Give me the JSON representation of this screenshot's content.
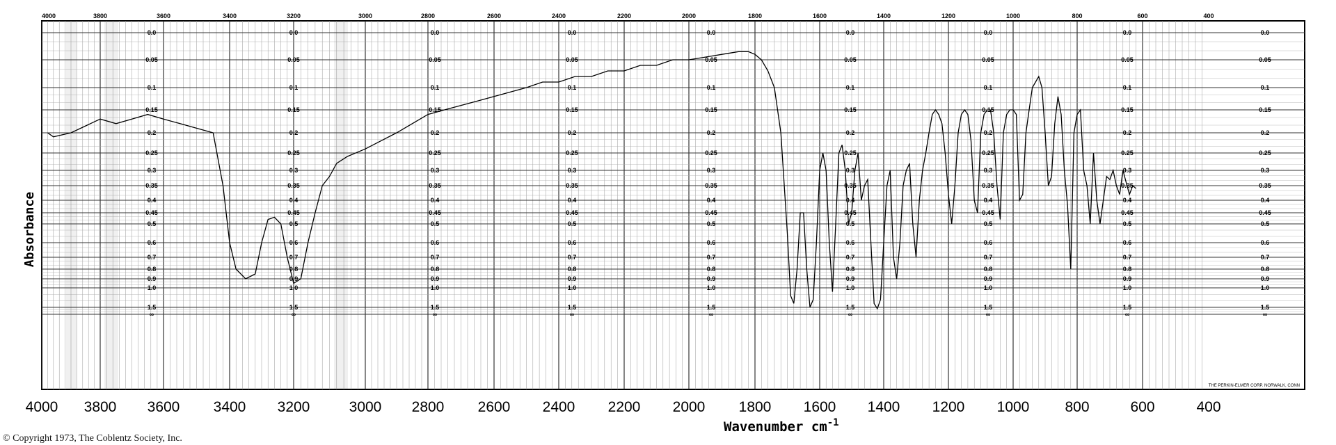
{
  "chart_data": {
    "type": "line",
    "ylabel": "Absorbance",
    "xlabel": "Wavenumber cm",
    "xlabel_superscript": "-1",
    "xlim": [
      4000,
      400
    ],
    "x_reversed": true,
    "y_scale": "absorbance",
    "ylim": [
      0.0,
      2.0
    ],
    "grid": true,
    "x_ticks_bottom": [
      "4000",
      "3800",
      "3600",
      "3400",
      "3200",
      "3000",
      "2800",
      "2600",
      "2400",
      "2200",
      "2000",
      "1800",
      "1600",
      "1400",
      "1200",
      "1000",
      "800",
      "600",
      "400"
    ],
    "x_ticks_top": [
      "4000",
      "3800",
      "3600",
      "3400",
      "3200",
      "3000",
      "2800",
      "2600",
      "2400",
      "2200",
      "2000",
      "1800",
      "1600",
      "1400",
      "1200",
      "1000",
      "800",
      "600",
      "400"
    ],
    "absorbance_ticks": [
      "0.0",
      "0.05",
      "0.1",
      "0.15",
      "0.2",
      "0.25",
      "0.3",
      "0.35",
      "0.4",
      "0.45",
      "0.5",
      "0.6",
      "0.7",
      "0.8",
      "0.9",
      "1.0",
      "1.5",
      "∞"
    ],
    "series": [
      {
        "x": [
          3980,
          3960,
          3900,
          3800,
          3750,
          3700,
          3650,
          3600,
          3550,
          3500,
          3450,
          3420,
          3400,
          3380,
          3350,
          3320,
          3300,
          3280,
          3260,
          3240,
          3220,
          3200,
          3180,
          3160,
          3140,
          3120,
          3100,
          3080,
          3050,
          3000,
          2950,
          2900,
          2850,
          2800,
          2750,
          2700,
          2650,
          2600,
          2550,
          2500,
          2450,
          2400,
          2350,
          2300,
          2250,
          2200,
          2150,
          2100,
          2050,
          2000,
          1950,
          1900,
          1850,
          1820,
          1800,
          1780,
          1760,
          1740,
          1720,
          1700,
          1690,
          1680,
          1670,
          1660,
          1650,
          1640,
          1630,
          1620,
          1610,
          1600,
          1590,
          1580,
          1570,
          1560,
          1550,
          1540,
          1530,
          1520,
          1510,
          1500,
          1490,
          1480,
          1470,
          1460,
          1450,
          1440,
          1430,
          1420,
          1410,
          1400,
          1390,
          1380,
          1370,
          1360,
          1350,
          1340,
          1330,
          1320,
          1310,
          1300,
          1290,
          1280,
          1270,
          1260,
          1250,
          1240,
          1230,
          1220,
          1210,
          1200,
          1190,
          1180,
          1170,
          1160,
          1150,
          1140,
          1130,
          1120,
          1110,
          1100,
          1090,
          1080,
          1070,
          1060,
          1050,
          1040,
          1030,
          1020,
          1010,
          1000,
          990,
          980,
          970,
          960,
          950,
          940,
          930,
          920,
          910,
          900,
          890,
          880,
          870,
          860,
          850,
          840,
          830,
          820,
          810,
          800,
          790,
          780,
          770,
          760,
          750,
          740,
          730,
          720,
          710,
          700,
          690,
          680,
          670,
          660,
          650,
          640,
          630,
          620
        ],
        "y": [
          0.2,
          0.21,
          0.2,
          0.17,
          0.18,
          0.17,
          0.16,
          0.17,
          0.18,
          0.19,
          0.2,
          0.35,
          0.6,
          0.8,
          0.9,
          0.85,
          0.6,
          0.48,
          0.47,
          0.5,
          0.7,
          0.95,
          0.9,
          0.6,
          0.45,
          0.35,
          0.32,
          0.28,
          0.26,
          0.24,
          0.22,
          0.2,
          0.18,
          0.16,
          0.15,
          0.14,
          0.13,
          0.12,
          0.11,
          0.1,
          0.09,
          0.09,
          0.08,
          0.08,
          0.07,
          0.07,
          0.06,
          0.06,
          0.05,
          0.05,
          0.045,
          0.04,
          0.035,
          0.035,
          0.04,
          0.05,
          0.07,
          0.1,
          0.2,
          0.55,
          1.2,
          1.4,
          0.8,
          0.45,
          0.45,
          0.8,
          1.5,
          1.3,
          0.6,
          0.3,
          0.25,
          0.3,
          0.6,
          1.1,
          0.5,
          0.25,
          0.23,
          0.3,
          0.5,
          0.45,
          0.3,
          0.25,
          0.4,
          0.35,
          0.33,
          0.6,
          1.4,
          1.6,
          1.3,
          0.6,
          0.35,
          0.3,
          0.7,
          0.9,
          0.6,
          0.35,
          0.3,
          0.28,
          0.5,
          0.7,
          0.4,
          0.3,
          0.25,
          0.2,
          0.16,
          0.15,
          0.16,
          0.18,
          0.25,
          0.38,
          0.5,
          0.35,
          0.2,
          0.16,
          0.15,
          0.16,
          0.22,
          0.4,
          0.45,
          0.2,
          0.16,
          0.15,
          0.15,
          0.2,
          0.35,
          0.48,
          0.2,
          0.16,
          0.15,
          0.15,
          0.16,
          0.4,
          0.38,
          0.2,
          0.15,
          0.1,
          0.09,
          0.08,
          0.1,
          0.2,
          0.35,
          0.32,
          0.18,
          0.12,
          0.16,
          0.3,
          0.42,
          0.8,
          0.2,
          0.16,
          0.15,
          0.3,
          0.35,
          0.5,
          0.25,
          0.4,
          0.5,
          0.4,
          0.32,
          0.33,
          0.3,
          0.35,
          0.38,
          0.3,
          0.34,
          0.38,
          0.35,
          0.36
        ]
      }
    ]
  },
  "footer": {
    "copyright": "© Copyright 1973, The Coblentz Society, Inc.",
    "maker": "THE PERKIN-ELMER CORP. NORWALK, CONN"
  }
}
